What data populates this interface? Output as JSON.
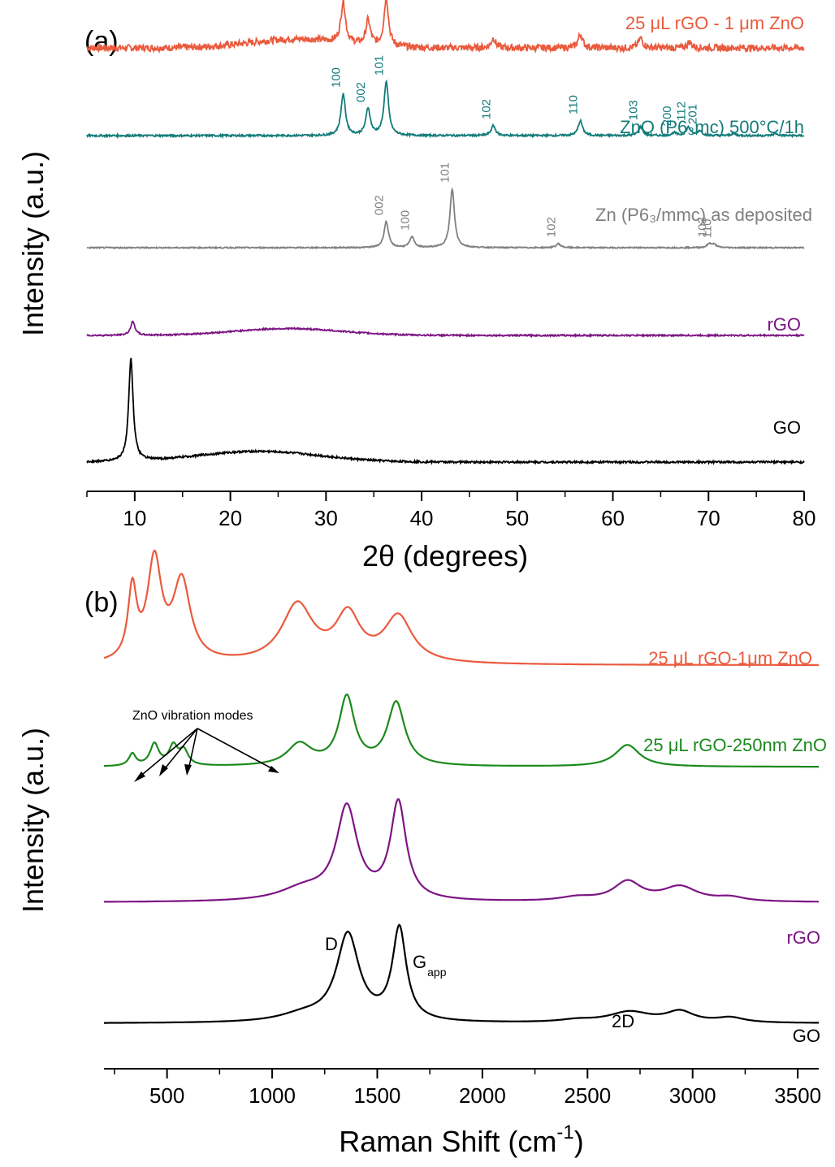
{
  "chart_data": [
    {
      "type": "line",
      "panel_label": "(a)",
      "xlabel": "2θ (degrees)",
      "ylabel": "Intensity (a.u.)",
      "xlim": [
        5,
        80
      ],
      "xticks": [
        10,
        20,
        30,
        40,
        50,
        60,
        70,
        80
      ],
      "series": [
        {
          "name": "25 μL rGO - 1 μm ZnO",
          "color": "#ea5a3d",
          "baseline": 0.91,
          "noise": 0.007,
          "humps": [
            {
              "c": 27,
              "w": 7,
              "h": 0.018
            }
          ],
          "peaks": [
            [
              31.8,
              0.085
            ],
            [
              34.4,
              0.05
            ],
            [
              36.3,
              0.1
            ],
            [
              47.5,
              0.02
            ],
            [
              56.6,
              0.028
            ],
            [
              62.9,
              0.02
            ],
            [
              68.0,
              0.012
            ]
          ]
        },
        {
          "name": "ZnO (P6₃mc) 500°C/1h",
          "color": "#137c7a",
          "baseline": 0.73,
          "noise": 0.002,
          "humps": [],
          "peaks": [
            [
              31.8,
              0.085
            ],
            [
              34.4,
              0.055
            ],
            [
              36.3,
              0.11
            ],
            [
              47.5,
              0.02
            ],
            [
              56.6,
              0.03
            ],
            [
              62.9,
              0.018
            ],
            [
              66.4,
              0.006
            ],
            [
              67.9,
              0.017
            ],
            [
              69.1,
              0.01
            ],
            [
              72.6,
              0.004
            ],
            [
              77.0,
              0.004
            ]
          ],
          "miller": [
            [
              "100",
              31.8,
              0.085
            ],
            [
              "002",
              34.4,
              0.055
            ],
            [
              "101",
              36.3,
              0.11
            ],
            [
              "102",
              47.5,
              0.02
            ],
            [
              "110",
              56.6,
              0.03
            ],
            [
              "103",
              62.9,
              0.018
            ],
            [
              "200",
              66.4,
              0.006
            ],
            [
              "112",
              67.9,
              0.017
            ],
            [
              "201",
              69.1,
              0.01
            ]
          ]
        },
        {
          "name": "Zn (P6₃/mmc) as deposited",
          "color": "#808080",
          "baseline": 0.5,
          "noise": 0.0012,
          "humps": [],
          "peaks": [
            [
              36.3,
              0.053
            ],
            [
              39.0,
              0.022
            ],
            [
              43.2,
              0.12
            ],
            [
              54.3,
              0.008
            ],
            [
              70.1,
              0.008
            ],
            [
              70.6,
              0.006
            ]
          ],
          "miller": [
            [
              "002",
              36.3,
              0.053
            ],
            [
              "100",
              39.0,
              0.022
            ],
            [
              "101",
              43.2,
              0.12
            ],
            [
              "102",
              54.3,
              0.008
            ],
            [
              "103",
              70.1,
              0.008
            ],
            [
              "110",
              70.6,
              0.006
            ]
          ]
        },
        {
          "name": "rGO",
          "color": "#7c1583",
          "baseline": 0.32,
          "noise": 0.0015,
          "humps": [
            {
              "c": 26,
              "w": 8,
              "h": 0.014
            }
          ],
          "peaks": [
            [
              9.8,
              0.028
            ]
          ]
        },
        {
          "name": "GO",
          "color": "#000000",
          "baseline": 0.06,
          "noise": 0.002,
          "humps": [
            {
              "c": 23,
              "w": 9,
              "h": 0.022
            }
          ],
          "peaks": [
            [
              9.6,
              0.21
            ]
          ]
        }
      ]
    },
    {
      "type": "line",
      "panel_label": "(b)",
      "xlabel": "Raman Shift (cm",
      "xlabel_sup": "-1",
      "xlabel_tail": ")",
      "ylabel": "Intensity (a.u.)",
      "xlim": [
        200,
        3600
      ],
      "xticks": [
        500,
        1000,
        1500,
        2000,
        2500,
        3000,
        3500
      ],
      "series": [
        {
          "name": "25 μL rGO-1μm ZnO",
          "color": "#ea5a3d",
          "baseline": 0.8,
          "peaks": [
            [
              335,
              0.145,
              25
            ],
            [
              440,
              0.205,
              40
            ],
            [
              570,
              0.165,
              50
            ],
            [
              1120,
              0.12,
              90
            ],
            [
              1360,
              0.095,
              70
            ],
            [
              1600,
              0.095,
              80
            ]
          ]
        },
        {
          "name": "25 μL rGO-250nm ZnO",
          "color": "#1c8a1c",
          "baseline": 0.59,
          "peaks": [
            [
              335,
              0.025,
              20
            ],
            [
              440,
              0.045,
              25
            ],
            [
              530,
              0.04,
              25
            ],
            [
              580,
              0.03,
              25
            ],
            [
              1130,
              0.045,
              70
            ],
            [
              1355,
              0.14,
              45
            ],
            [
              1590,
              0.13,
              50
            ],
            [
              2690,
              0.045,
              70
            ]
          ]
        },
        {
          "name": "rGO",
          "color": "#7c1583",
          "baseline": 0.31,
          "peaks": [
            [
              1150,
              0.025,
              140
            ],
            [
              1355,
              0.19,
              60
            ],
            [
              1600,
              0.2,
              45
            ],
            [
              2450,
              0.008,
              100
            ],
            [
              2690,
              0.04,
              80
            ],
            [
              2940,
              0.03,
              100
            ],
            [
              3180,
              0.008,
              80
            ]
          ]
        },
        {
          "name": "GO",
          "color": "#000000",
          "baseline": 0.06,
          "peaks": [
            [
              1150,
              0.015,
              140
            ],
            [
              1360,
              0.18,
              65
            ],
            [
              1605,
              0.19,
              40
            ],
            [
              2450,
              0.005,
              100
            ],
            [
              2700,
              0.022,
              120
            ],
            [
              2940,
              0.022,
              80
            ],
            [
              3180,
              0.01,
              80
            ]
          ]
        }
      ],
      "annotations": {
        "zno_modes": "ZnO vibration modes",
        "D": "D",
        "G": "G",
        "G_sub": "app",
        "twoD": "2D"
      }
    }
  ]
}
